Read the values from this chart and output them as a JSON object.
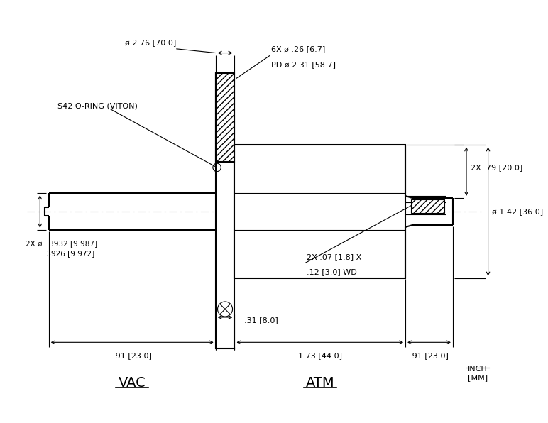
{
  "bg_color": "#ffffff",
  "line_color": "#000000",
  "annotations": {
    "diam_flange": "ø 2.76 [70.0]",
    "bolt_circle_1": "6X ø .26 [6.7]",
    "bolt_circle_2": "PD ø 2.31 [58.7]",
    "o_ring": "S42 O-RING (VITON)",
    "shaft_diam_1": "2X ø  .3932 [9.987]",
    "shaft_diam_2": "        .3926 [9.972]",
    "dim_91_left": ".91 [23.0]",
    "dim_173": "1.73 [44.0]",
    "dim_91_right": ".91 [23.0]",
    "dim_31": ".31 [8.0]",
    "dim_279": "2X .79 [20.0]",
    "dim_142": "ø 1.42 [36.0]",
    "dim_groove_1": "2X .07 [1.8] X",
    "dim_groove_2": ".12 [3.0] WD",
    "label_vac": "VAC",
    "label_atm": "ATM",
    "label_unit_1": "INCH",
    "label_unit_2": "[MM]"
  },
  "figsize": [
    7.72,
    5.96
  ],
  "dpi": 100
}
